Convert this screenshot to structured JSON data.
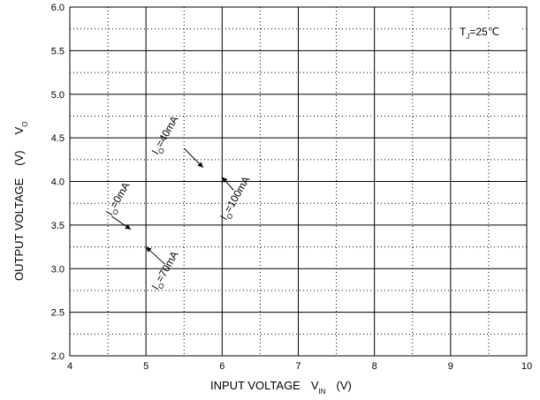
{
  "chart_data": {
    "type": "line",
    "xlabel": {
      "main": "INPUT VOLTAGE",
      "symbol": "V",
      "subscript": "IN",
      "unit": "(V)"
    },
    "ylabel": {
      "main": "OUTPUT VOLTAGE",
      "unit": "(V)",
      "symbol": "V",
      "subscript": "O"
    },
    "xlim": [
      4,
      10
    ],
    "ylim": [
      2.0,
      6.0
    ],
    "x_ticks": [
      4,
      5,
      6,
      7,
      8,
      9,
      10
    ],
    "x_tick_labels": [
      "4",
      "5",
      "6",
      "7",
      "8",
      "9",
      "10"
    ],
    "y_ticks": [
      2.0,
      2.5,
      3.0,
      3.5,
      4.0,
      4.5,
      5.0,
      5.5,
      6.0
    ],
    "y_tick_labels": [
      "2.0",
      "2.5",
      "3.0",
      "3.5",
      "4.0",
      "4.5",
      "5.0",
      "5.5",
      "6.0"
    ],
    "grid": {
      "major": true,
      "minor_dotted": true
    },
    "legend": {
      "text_prefix": "T",
      "subscript": "J",
      "text_suffix": "=25℃",
      "placement": "top-right"
    },
    "series": [],
    "annotations": [
      {
        "prefix": "I",
        "subscript": "O",
        "label": "=0mA",
        "tx": 4.55,
        "ty": 3.6,
        "ax": 4.55,
        "ay": 3.6,
        "hx": 4.8,
        "hy": 3.45
      },
      {
        "prefix": "I",
        "subscript": "O",
        "label": "=40mA",
        "tx": 5.15,
        "ty": 4.3,
        "ax": 5.5,
        "ay": 4.38,
        "hx": 5.75,
        "hy": 4.16
      },
      {
        "prefix": "I",
        "subscript": "O",
        "label": "=70mA",
        "tx": 5.15,
        "ty": 2.75,
        "ax": 5.25,
        "ay": 3.05,
        "hx": 5.0,
        "hy": 3.25
      },
      {
        "prefix": "I",
        "subscript": "O",
        "label": "=100mA",
        "tx": 6.05,
        "ty": 3.55,
        "ax": 6.15,
        "ay": 3.9,
        "hx": 6.0,
        "hy": 4.05
      }
    ]
  }
}
